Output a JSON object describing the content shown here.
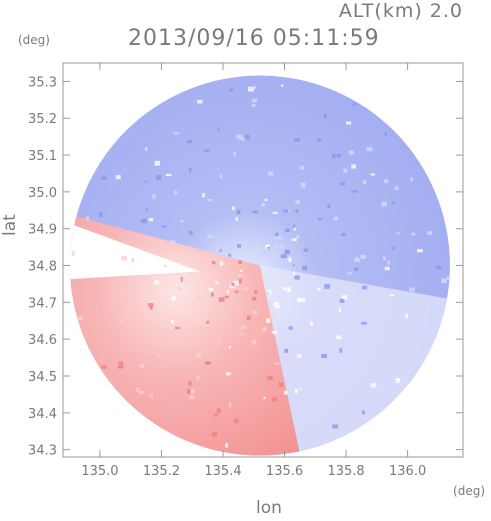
{
  "header": {
    "altitude_label": "ALT(km)  2.0",
    "timestamp": "2013/09/16 05:11:59"
  },
  "chart_data": {
    "type": "heatmap",
    "title": "2013/09/16 05:11:59",
    "subtitle": "ALT(km)  2.0",
    "xlabel": "lon",
    "ylabel": "lat",
    "x_unit": "(deg)",
    "y_unit": "(deg)",
    "xlim": [
      134.88,
      136.18
    ],
    "ylim": [
      34.28,
      35.35
    ],
    "x_ticks": [
      135.0,
      135.2,
      135.4,
      135.6,
      135.8,
      136.0
    ],
    "x_tick_labels": [
      "135.0",
      "135.2",
      "135.4",
      "135.6",
      "135.8",
      "136.0"
    ],
    "y_ticks": [
      34.3,
      34.4,
      34.5,
      34.6,
      34.7,
      34.8,
      34.9,
      35.0,
      35.1,
      35.2,
      35.3
    ],
    "y_tick_labels": [
      "34.3",
      "34.4",
      "34.5",
      "34.6",
      "34.7",
      "34.8",
      "34.9",
      "35.0",
      "35.1",
      "35.2",
      "35.3"
    ],
    "radar_center": [
      135.52,
      34.8
    ],
    "colors": {
      "approaching": "#8f9df0",
      "receding": "#f08a8a",
      "neutral": "#ffffff",
      "frame": "#9a9a9a"
    },
    "grid": false
  }
}
